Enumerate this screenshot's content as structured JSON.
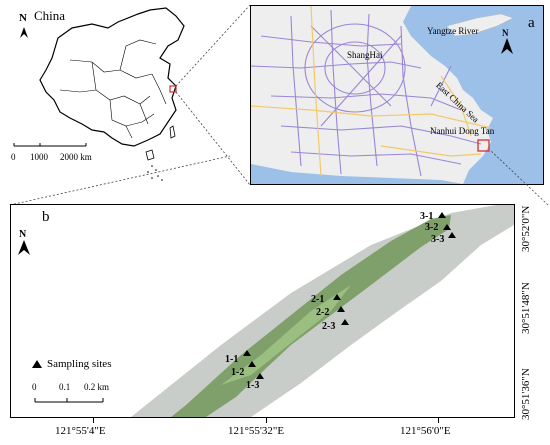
{
  "inset_china": {
    "country_label": "China",
    "north_letter": "N",
    "scale_ticks": [
      "0",
      "1000",
      "2000 km"
    ]
  },
  "panel_a": {
    "panel_letter": "a",
    "north_letter": "N",
    "city_label": "ShangHai",
    "river_label": "Yangtze  River",
    "sea_label": "East China Sea",
    "site_label": "Nanhui  Dong  Tan",
    "colors": {
      "sea": "#9cc0e8",
      "land": "#eeeeee",
      "roads": "#9a85d8",
      "highway": "#f2c96a",
      "box": "#d43030"
    }
  },
  "panel_b": {
    "panel_letter": "b",
    "north_letter": "N",
    "legend_label": "Sampling sites",
    "scale_ticks": [
      "0",
      "0.1",
      "0.2 km"
    ],
    "sites": [
      {
        "id": "3-1"
      },
      {
        "id": "3-2"
      },
      {
        "id": "3-3"
      },
      {
        "id": "2-1"
      },
      {
        "id": "2-2"
      },
      {
        "id": "2-3"
      },
      {
        "id": "1-1"
      },
      {
        "id": "1-2"
      },
      {
        "id": "1-3"
      }
    ],
    "lon_ticks": [
      "121°55'4\"E",
      "121°55'32\"E",
      "121°56'0\"E"
    ],
    "lat_ticks": [
      "30°52'0\"N",
      "30°51'48\"N",
      "30°51'36\"N"
    ],
    "colors": {
      "vegetation": "#7fa06a",
      "mudflat": "#c9cdc9"
    }
  }
}
